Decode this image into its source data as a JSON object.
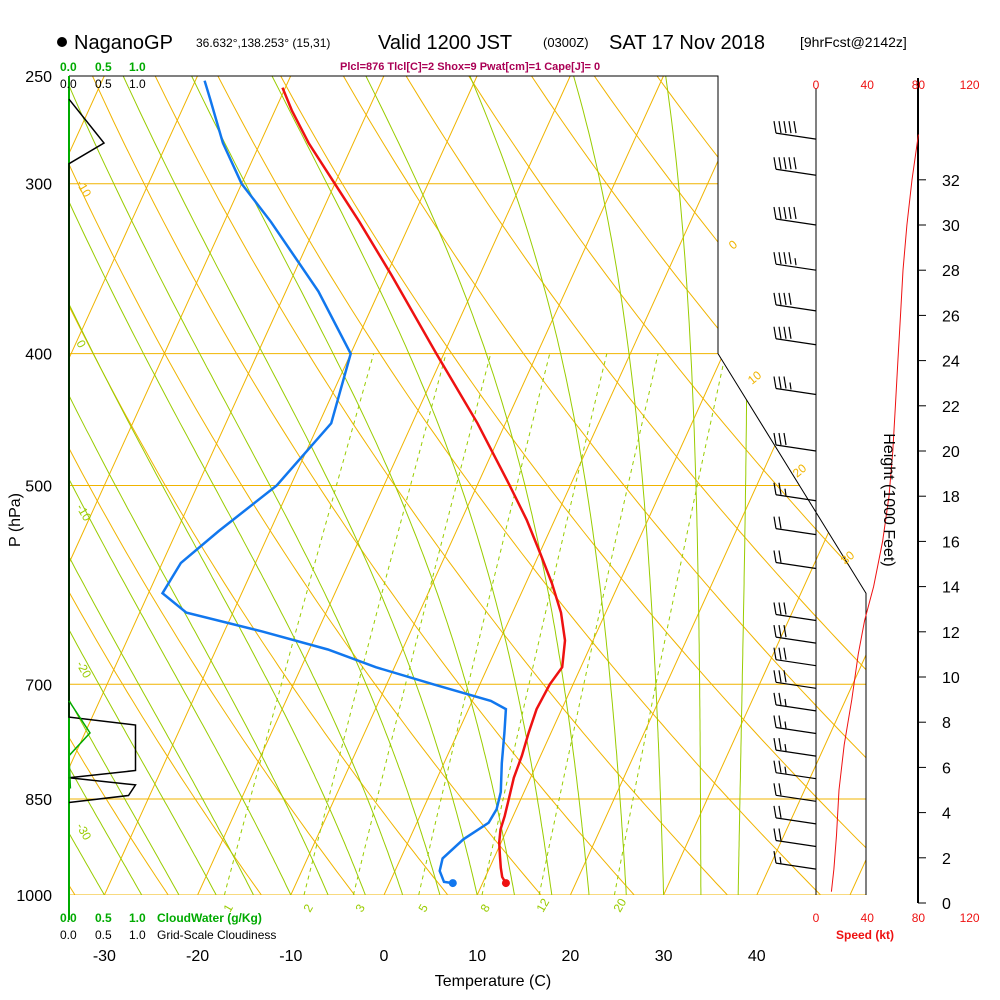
{
  "header": {
    "station": "NaganoGP",
    "coords": "36.632°,138.253° (15,31)",
    "valid_main": "Valid 1200 JST",
    "valid_z": "(0300Z)",
    "valid_date": "SAT 17 Nov 2018",
    "fcst": "[9hrFcst@2142z]",
    "indices": "Plcl=876 Tlcl[C]=2 Shox=9 Pwat[cm]=1 Cape[J]= 0"
  },
  "scale_labels": {
    "cloudwater_values": [
      "0.0",
      "0.5",
      "1.0"
    ],
    "cloudiness_values": [
      "0.0",
      "0.5",
      "1.0"
    ],
    "cloudwater_label": "CloudWater (g/Kg)",
    "cloudiness_label": "Grid-Scale Cloudiness",
    "speed_label": "Speed (kt)"
  },
  "colors": {
    "isobar": "#f0b400",
    "dry_adiabat": "#f0b400",
    "moist_adiabat": "#99cc00",
    "mixing_ratio": "#99cc00",
    "temperature": "#ee1111",
    "dewpoint": "#1177ee",
    "cloudwater": "#00aa00",
    "cloudiness": "#000000",
    "speed": "#ee1111"
  },
  "chart_data": {
    "type": "skew-t",
    "xlabel": "Temperature (C)",
    "ylabel": "P (hPa)",
    "y2label": "Height (1000 Feet)",
    "x_ticks": [
      -30,
      -20,
      -10,
      0,
      10,
      20,
      30,
      40
    ],
    "pressure_ticks": [
      250,
      300,
      400,
      500,
      700,
      850,
      1000
    ],
    "height_ticks_kft": [
      0,
      2,
      4,
      6,
      8,
      10,
      12,
      14,
      16,
      18,
      20,
      22,
      24,
      26,
      28,
      30,
      32
    ],
    "speed_ticks_kt": [
      0,
      40,
      80,
      120
    ],
    "dry_adiabat_labels": [
      "-10",
      "0",
      "10",
      "20",
      "30"
    ],
    "moist_adiabat_labels": [
      "0",
      "-10",
      "-20",
      "-30"
    ],
    "mixing_ratio_labels": [
      "1",
      "2",
      "3",
      "5",
      "8",
      "12",
      "20"
    ],
    "temperature_profile": [
      {
        "p": 980,
        "t": 12.5
      },
      {
        "p": 970,
        "t": 11.8
      },
      {
        "p": 955,
        "t": 11.2
      },
      {
        "p": 935,
        "t": 10.5
      },
      {
        "p": 915,
        "t": 9.8
      },
      {
        "p": 895,
        "t": 9.3
      },
      {
        "p": 875,
        "t": 9.1
      },
      {
        "p": 850,
        "t": 8.7
      },
      {
        "p": 820,
        "t": 8.2
      },
      {
        "p": 790,
        "t": 8.0
      },
      {
        "p": 760,
        "t": 7.6
      },
      {
        "p": 730,
        "t": 7.3
      },
      {
        "p": 700,
        "t": 7.5
      },
      {
        "p": 680,
        "t": 8.0
      },
      {
        "p": 650,
        "t": 7.0
      },
      {
        "p": 620,
        "t": 5.2
      },
      {
        "p": 590,
        "t": 2.8
      },
      {
        "p": 560,
        "t": 0.0
      },
      {
        "p": 530,
        "t": -3.0
      },
      {
        "p": 500,
        "t": -6.5
      },
      {
        "p": 450,
        "t": -13.0
      },
      {
        "p": 400,
        "t": -20.8
      },
      {
        "p": 350,
        "t": -29.5
      },
      {
        "p": 320,
        "t": -35.5
      },
      {
        "p": 300,
        "t": -40.0
      },
      {
        "p": 280,
        "t": -44.8
      },
      {
        "p": 265,
        "t": -48.2
      },
      {
        "p": 255,
        "t": -50.3
      }
    ],
    "dewpoint_profile": [
      {
        "p": 980,
        "t": 6.8
      },
      {
        "p": 978,
        "t": 5.8
      },
      {
        "p": 960,
        "t": 4.8
      },
      {
        "p": 940,
        "t": 4.5
      },
      {
        "p": 910,
        "t": 5.8
      },
      {
        "p": 885,
        "t": 7.7
      },
      {
        "p": 865,
        "t": 7.9
      },
      {
        "p": 840,
        "t": 7.5
      },
      {
        "p": 800,
        "t": 6.2
      },
      {
        "p": 760,
        "t": 5.0
      },
      {
        "p": 730,
        "t": 4.0
      },
      {
        "p": 720,
        "t": 2.0
      },
      {
        "p": 700,
        "t": -5.0
      },
      {
        "p": 680,
        "t": -12.0
      },
      {
        "p": 660,
        "t": -18.0
      },
      {
        "p": 640,
        "t": -26.0
      },
      {
        "p": 620,
        "t": -35.0
      },
      {
        "p": 600,
        "t": -38.5
      },
      {
        "p": 570,
        "t": -38.0
      },
      {
        "p": 540,
        "t": -35.5
      },
      {
        "p": 500,
        "t": -31.5
      },
      {
        "p": 450,
        "t": -28.7
      },
      {
        "p": 400,
        "t": -30.0
      },
      {
        "p": 360,
        "t": -36.5
      },
      {
        "p": 320,
        "t": -45.0
      },
      {
        "p": 300,
        "t": -50.0
      },
      {
        "p": 280,
        "t": -54.0
      },
      {
        "p": 260,
        "t": -57.5
      },
      {
        "p": 252,
        "t": -59.0
      }
    ],
    "wind_barbs": [
      {
        "h": 1.5,
        "speed": 15
      },
      {
        "h": 2.5,
        "speed": 20
      },
      {
        "h": 3.5,
        "speed": 20
      },
      {
        "h": 4.5,
        "speed": 20
      },
      {
        "h": 5.5,
        "speed": 25
      },
      {
        "h": 6.5,
        "speed": 25
      },
      {
        "h": 7.5,
        "speed": 25
      },
      {
        "h": 8.5,
        "speed": 25
      },
      {
        "h": 9.5,
        "speed": 30
      },
      {
        "h": 10.5,
        "speed": 30
      },
      {
        "h": 11.5,
        "speed": 30
      },
      {
        "h": 12.5,
        "speed": 30
      },
      {
        "h": 14.8,
        "speed": 20
      },
      {
        "h": 16.3,
        "speed": 20
      },
      {
        "h": 17.8,
        "speed": 25
      },
      {
        "h": 20.0,
        "speed": 30
      },
      {
        "h": 22.5,
        "speed": 35
      },
      {
        "h": 24.7,
        "speed": 40
      },
      {
        "h": 26.2,
        "speed": 40
      },
      {
        "h": 28.0,
        "speed": 45
      },
      {
        "h": 30.0,
        "speed": 50
      },
      {
        "h": 32.2,
        "speed": 50
      },
      {
        "h": 33.8,
        "speed": 50
      }
    ],
    "speed_profile": [
      {
        "h": 0.5,
        "speed": 12
      },
      {
        "h": 1.5,
        "speed": 14
      },
      {
        "h": 3,
        "speed": 16
      },
      {
        "h": 5,
        "speed": 18
      },
      {
        "h": 7,
        "speed": 22
      },
      {
        "h": 9,
        "speed": 28
      },
      {
        "h": 11,
        "speed": 33
      },
      {
        "h": 12.5,
        "speed": 38
      },
      {
        "h": 14,
        "speed": 45
      },
      {
        "h": 16,
        "speed": 52
      },
      {
        "h": 18,
        "speed": 57
      },
      {
        "h": 20,
        "speed": 60
      },
      {
        "h": 22,
        "speed": 62
      },
      {
        "h": 24,
        "speed": 64
      },
      {
        "h": 26,
        "speed": 66
      },
      {
        "h": 28,
        "speed": 68
      },
      {
        "h": 30,
        "speed": 71
      },
      {
        "h": 32,
        "speed": 75
      },
      {
        "h": 34,
        "speed": 80
      }
    ],
    "cloudiness_profile": [
      {
        "p": 260,
        "v": 0.0
      },
      {
        "p": 280,
        "v": 0.5
      },
      {
        "p": 290,
        "v": 0.0
      },
      {
        "p": 740,
        "v": 0.0
      },
      {
        "p": 750,
        "v": 0.95
      },
      {
        "p": 810,
        "v": 0.95
      },
      {
        "p": 820,
        "v": 0.0
      },
      {
        "p": 820,
        "v": 0.0
      },
      {
        "p": 830,
        "v": 0.95
      },
      {
        "p": 845,
        "v": 0.85
      },
      {
        "p": 855,
        "v": 0.0
      }
    ],
    "cloudwater_profile": [
      {
        "p": 720,
        "v": 0.0
      },
      {
        "p": 760,
        "v": 0.3
      },
      {
        "p": 790,
        "v": 0.0
      },
      {
        "p": 835,
        "v": 0.02
      }
    ]
  }
}
